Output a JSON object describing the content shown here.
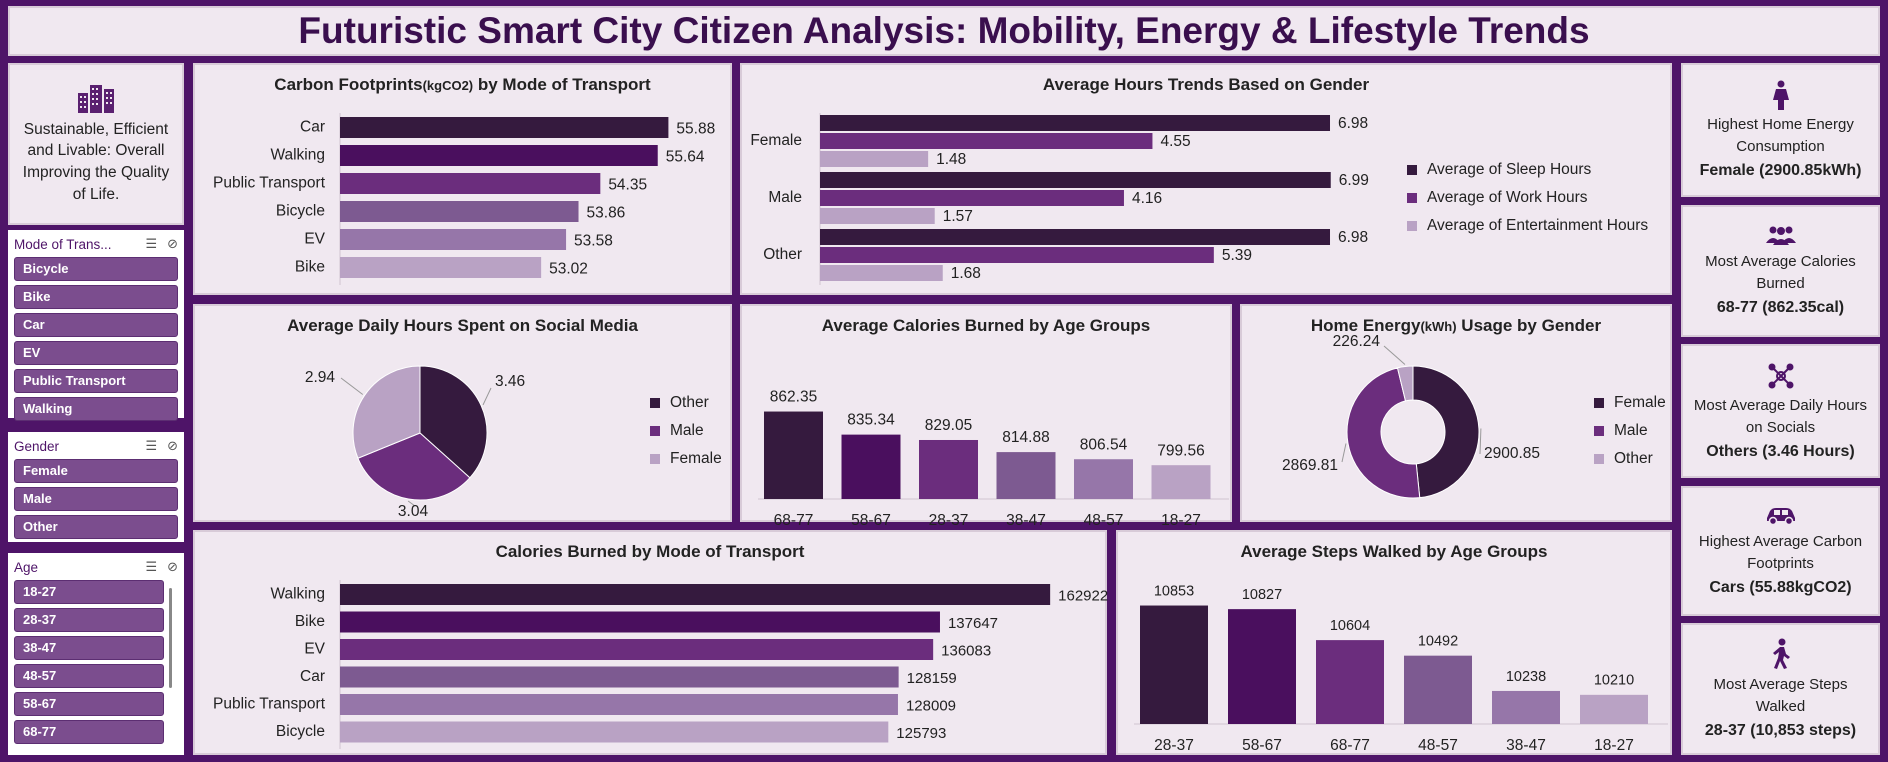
{
  "title": "Futuristic Smart City Citizen Analysis: Mobility, Energy & Lifestyle Trends",
  "intro": {
    "icon": "city-buildings-icon",
    "text": "Sustainable, Efficient and Livable: Overall Improving the Quality of Life."
  },
  "slicers": {
    "mode": {
      "title": "Mode of Trans...",
      "items": [
        "Bicycle",
        "Bike",
        "Car",
        "EV",
        "Public Transport",
        "Walking"
      ]
    },
    "gender": {
      "title": "Gender",
      "items": [
        "Female",
        "Male",
        "Other"
      ]
    },
    "age": {
      "title": "Age",
      "items": [
        "18-27",
        "28-37",
        "38-47",
        "48-57",
        "58-67",
        "68-77"
      ]
    }
  },
  "kpis": [
    {
      "icon": "female-icon",
      "label": "Highest Home Energy Consumption",
      "value": "Female (2900.85kWh)"
    },
    {
      "icon": "people-group-icon",
      "label": "Most Average Calories Burned",
      "value": "68-77 (862.35cal)"
    },
    {
      "icon": "social-network-icon",
      "label": "Most Average Daily Hours on Socials",
      "value": "Others (3.46 Hours)"
    },
    {
      "icon": "car-icon",
      "label": "Highest Average Carbon Footprints",
      "value": "Cars (55.88kgCO2)"
    },
    {
      "icon": "walking-person-icon",
      "label": "Most Average Steps Walked",
      "value": "28-37 (10,853 steps)"
    }
  ],
  "colors": {
    "c1": "#351a3e",
    "c2": "#4a0f5e",
    "c3": "#6b2d7d",
    "c4": "#7d5a91",
    "c5": "#9676a9",
    "c6": "#b9a2c4",
    "sleep": "#351a3e",
    "work": "#6b2d7d",
    "ent": "#b9a2c4"
  },
  "chart_data": [
    {
      "id": "carbon",
      "type": "bar",
      "title": "Carbon Footprints",
      "title_unit": "(kgCO2)",
      "title_suffix": " by Mode of Transport",
      "orientation": "horizontal",
      "categories": [
        "Car",
        "Walking",
        "Public Transport",
        "Bicycle",
        "EV",
        "Bike"
      ],
      "values": [
        55.88,
        55.64,
        54.35,
        53.86,
        53.58,
        53.02
      ],
      "labels": [
        "55.88",
        "55.64",
        "54.35",
        "53.86",
        "53.58",
        "53.02"
      ],
      "xlim": [
        48.5,
        56.5
      ]
    },
    {
      "id": "hours",
      "type": "bar",
      "title": "Average Hours Trends Based on Gender",
      "orientation": "horizontal",
      "categories": [
        "Female",
        "Male",
        "Other"
      ],
      "series": [
        {
          "name": "Average of Sleep Hours",
          "values": [
            6.98,
            6.99,
            6.98
          ]
        },
        {
          "name": "Average of Work Hours",
          "values": [
            4.55,
            4.16,
            5.39
          ]
        },
        {
          "name": "Average of Entertainment Hours",
          "values": [
            1.48,
            1.57,
            1.68
          ]
        }
      ],
      "xlim": [
        0,
        7.5
      ],
      "legend": "right"
    },
    {
      "id": "social",
      "type": "pie",
      "title": "Average Daily Hours Spent on Social Media",
      "categories": [
        "Other",
        "Male",
        "Female"
      ],
      "values": [
        3.46,
        3.04,
        2.94
      ],
      "labels": [
        "3.46",
        "3.04",
        "2.94"
      ],
      "legend": "right"
    },
    {
      "id": "calories_age",
      "type": "bar",
      "title": "Average Calories Burned by Age Groups",
      "categories": [
        "68-77",
        "58-67",
        "28-37",
        "38-47",
        "48-57",
        "18-27"
      ],
      "values": [
        862.35,
        835.34,
        829.05,
        814.88,
        806.54,
        799.56
      ],
      "labels": [
        "862.35",
        "835.34",
        "829.05",
        "814.88",
        "806.54",
        "799.56"
      ],
      "ylim": [
        760,
        870
      ]
    },
    {
      "id": "energy",
      "type": "pie",
      "donut": true,
      "title": "Home Energy",
      "title_unit": "(kWh)",
      "title_suffix": " Usage by Gender",
      "categories": [
        "Female",
        "Male",
        "Other"
      ],
      "values": [
        2900.85,
        2869.81,
        226.24
      ],
      "labels": [
        "2900.85",
        "2869.81",
        "226.24"
      ],
      "legend": "right"
    },
    {
      "id": "calories_mode",
      "type": "bar",
      "title": "Calories Burned by Mode of Transport",
      "orientation": "horizontal",
      "categories": [
        "Walking",
        "Bike",
        "EV",
        "Car",
        "Public Transport",
        "Bicycle"
      ],
      "values": [
        162922,
        137647,
        136083,
        128159,
        128009,
        125793
      ],
      "labels": [
        "162922",
        "137647",
        "136083",
        "128159",
        "128009",
        "125793"
      ],
      "xlim": [
        0,
        170000
      ]
    },
    {
      "id": "steps",
      "type": "bar",
      "title": "Average Steps Walked by Age Groups",
      "categories": [
        "28-37",
        "58-67",
        "68-77",
        "48-57",
        "38-47",
        "18-27"
      ],
      "values": [
        10853,
        10827,
        10604,
        10492,
        10238,
        10210
      ],
      "labels": [
        "10853",
        "10827",
        "10604",
        "10492",
        "10238",
        "10210"
      ],
      "ylim": [
        10000,
        10900
      ]
    }
  ]
}
